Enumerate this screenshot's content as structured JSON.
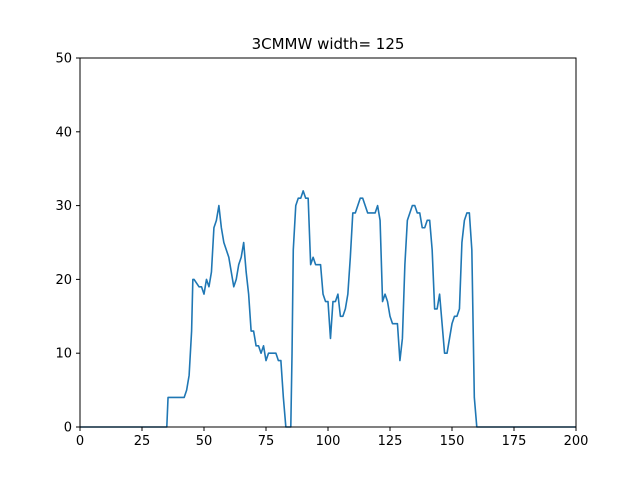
{
  "chart_data": {
    "type": "line",
    "title": "3CMMW width= 125",
    "xlabel": "",
    "ylabel": "",
    "xlim": [
      0,
      200
    ],
    "ylim": [
      0,
      50
    ],
    "xticks": [
      0,
      25,
      50,
      75,
      100,
      125,
      150,
      175,
      200
    ],
    "yticks": [
      0,
      10,
      20,
      30,
      40,
      50
    ],
    "grid": false,
    "color": "#1f77b4",
    "series": [
      {
        "x": [
          0,
          35,
          35.5,
          42,
          43,
          44,
          45,
          45.5,
          46,
          48,
          49,
          50,
          51,
          52,
          53,
          54,
          55,
          56,
          57,
          58,
          60,
          62,
          63,
          64,
          65,
          66,
          67,
          68,
          69,
          70,
          71,
          72,
          73,
          74,
          75,
          76,
          77,
          78,
          79,
          80,
          81,
          82,
          83,
          84,
          85,
          85.5,
          86,
          87,
          88,
          89,
          90,
          91,
          92,
          93,
          94,
          95,
          96,
          97,
          98,
          99,
          100,
          101,
          102,
          103,
          104,
          105,
          106,
          107,
          108,
          109,
          110,
          111,
          112,
          113,
          114,
          115,
          116,
          117,
          118,
          119,
          120,
          121,
          122,
          123,
          124,
          125,
          126,
          127,
          128,
          129,
          130,
          131,
          132,
          133,
          134,
          135,
          136,
          137,
          138,
          139,
          140,
          141,
          142,
          143,
          144,
          145,
          146,
          147,
          148,
          149,
          150,
          151,
          152,
          153,
          154,
          155,
          156,
          157,
          158,
          159,
          160,
          200
        ],
        "y": [
          0,
          0,
          4,
          4,
          5,
          7,
          13,
          20,
          20,
          19,
          19,
          18,
          20,
          19,
          21,
          27,
          28,
          30,
          27,
          25,
          23,
          19,
          20,
          22,
          23,
          25,
          21,
          18,
          13,
          13,
          11,
          11,
          10,
          11,
          9,
          10,
          10,
          10,
          10,
          9,
          9,
          4,
          0,
          0,
          0,
          10,
          24,
          30,
          31,
          31,
          32,
          31,
          31,
          22,
          23,
          22,
          22,
          22,
          18,
          17,
          17,
          12,
          17,
          17,
          18,
          15,
          15,
          16,
          18,
          23,
          29,
          29,
          30,
          31,
          31,
          30,
          29,
          29,
          29,
          29,
          30,
          28,
          17,
          18,
          17,
          15,
          14,
          14,
          14,
          9,
          12,
          22,
          28,
          29,
          30,
          30,
          29,
          29,
          27,
          27,
          28,
          28,
          24,
          16,
          16,
          18,
          14,
          10,
          10,
          12,
          14,
          15,
          15,
          16,
          25,
          28,
          29,
          29,
          24,
          4,
          0,
          0
        ]
      }
    ]
  }
}
